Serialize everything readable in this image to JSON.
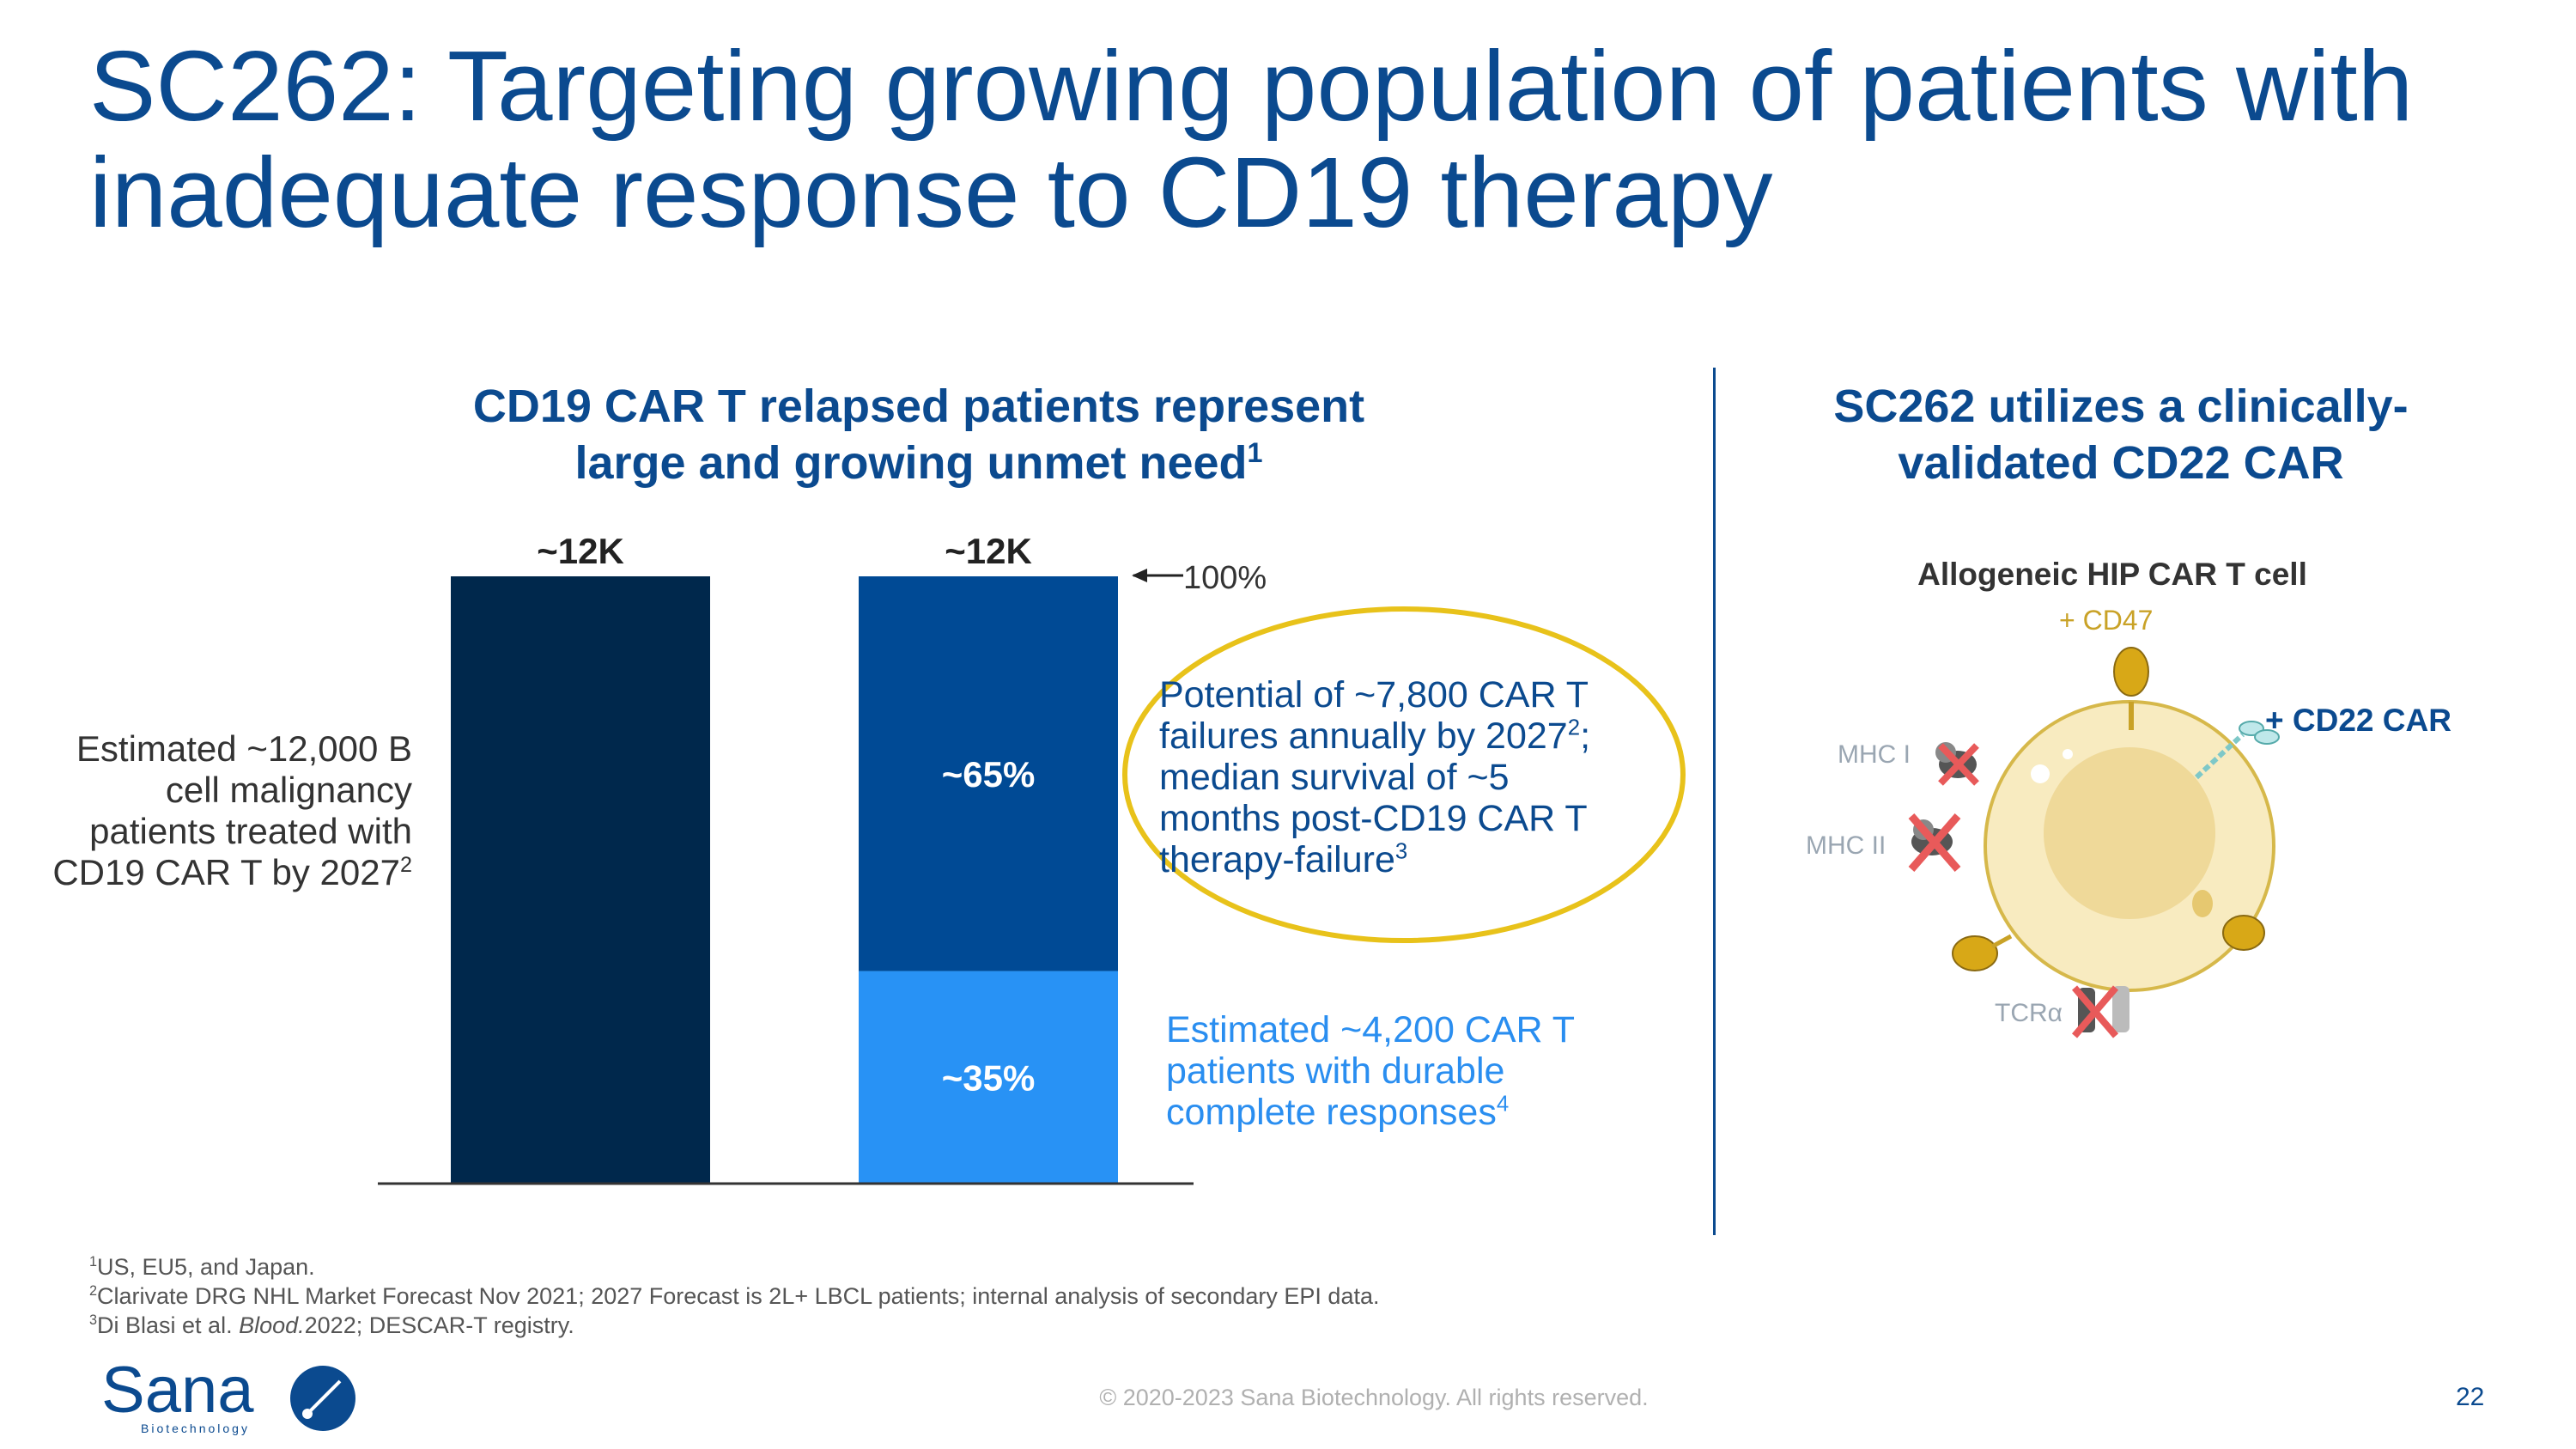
{
  "title": "SC262: Targeting growing population of patients with inadequate response to CD19 therapy",
  "left_heading": {
    "line1": "CD19 CAR T relapsed patients represent",
    "line2": "large and growing unmet need",
    "line2_sup": "1"
  },
  "right_heading": {
    "line1": "SC262 utilizes a clinically-",
    "line2": "validated CD22 CAR"
  },
  "left_label": {
    "text": "Estimated ~12,000 B cell malignancy patients treated with CD19 CAR T by 2027",
    "sup": "2"
  },
  "chart_data": {
    "type": "bar",
    "categories": [
      "",
      ""
    ],
    "series": [
      {
        "values": [
          12000,
          4200
        ],
        "labels": [
          "",
          "~35%"
        ],
        "colors": [
          "#00284c",
          "#2892f5"
        ]
      },
      {
        "values": [
          0,
          7800
        ],
        "labels": [
          "",
          "~65%"
        ],
        "colors": [
          "#00284c",
          "#004a95"
        ]
      }
    ],
    "totals_labels": [
      "~12K",
      "~12K"
    ],
    "ylim": [
      0,
      12000
    ],
    "annotation": "100%",
    "xlabel": "",
    "ylabel": ""
  },
  "potential": {
    "p1": "Potential of ~7,800 CAR T failures annually by 2027",
    "sup1": "2",
    "p2": "; median survival of ~5 months post-CD19 CAR T therapy-failure",
    "sup2": "3"
  },
  "durable": {
    "text": "Estimated ~4,200 CAR T patients with durable complete responses",
    "sup": "4"
  },
  "cell": {
    "title": "Allogeneic HIP CAR T cell",
    "cd47": "+ CD47",
    "cd22": "+ CD22 CAR",
    "mhc1": "MHC I",
    "mhc2": "MHC II",
    "tcra": "TCRα"
  },
  "footnotes": {
    "n1_sup": "1",
    "n1": "US, EU5, and Japan.",
    "n2_sup": "2",
    "n2": "Clarivate DRG NHL Market Forecast Nov 2021; 2027 Forecast is 2L+ LBCL patients; internal analysis of secondary EPI data.",
    "n3_sup": "3",
    "n3_a": "Di Blasi et al. ",
    "n3_i": "Blood.",
    "n3_b": "2022; DESCAR-T registry."
  },
  "logo": {
    "name": "Sana",
    "tagline": "Biotechnology"
  },
  "copyright": "© 2020-2023 Sana Biotechnology. All rights reserved.",
  "page_number": "22",
  "colors": {
    "brand_blue": "#0b4a8f",
    "accent_gold": "#e8c21a"
  }
}
